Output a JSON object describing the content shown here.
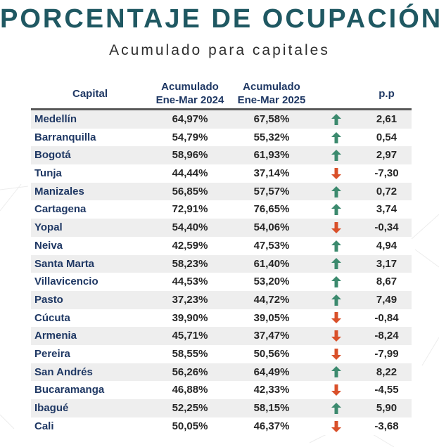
{
  "title": "PORCENTAJE DE OCUPACIÓN",
  "subtitle": "Acumulado para capitales",
  "colors": {
    "title": "#1f5862",
    "city": "#1f3864",
    "up": "#3c8a6e",
    "down": "#d9502a"
  },
  "header": {
    "capital": "Capital",
    "col2_line1": "Acumulado",
    "col2_line2": "Ene-Mar 2024",
    "col3_line1": "Acumulado",
    "col3_line2": "Ene-Mar 2025",
    "pp": "p.p"
  },
  "rows": [
    {
      "city": "Medellín",
      "y2024": "64,97%",
      "y2025": "67,58%",
      "trend": "up",
      "pp": "2,61"
    },
    {
      "city": "Barranquilla",
      "y2024": "54,79%",
      "y2025": "55,32%",
      "trend": "up",
      "pp": "0,54"
    },
    {
      "city": "Bogotá",
      "y2024": "58,96%",
      "y2025": "61,93%",
      "trend": "up",
      "pp": "2,97"
    },
    {
      "city": "Tunja",
      "y2024": "44,44%",
      "y2025": "37,14%",
      "trend": "down",
      "pp": "-7,30"
    },
    {
      "city": "Manizales",
      "y2024": "56,85%",
      "y2025": "57,57%",
      "trend": "up",
      "pp": "0,72"
    },
    {
      "city": "Cartagena",
      "y2024": "72,91%",
      "y2025": "76,65%",
      "trend": "up",
      "pp": "3,74"
    },
    {
      "city": "Yopal",
      "y2024": "54,40%",
      "y2025": "54,06%",
      "trend": "down",
      "pp": "-0,34"
    },
    {
      "city": "Neiva",
      "y2024": "42,59%",
      "y2025": "47,53%",
      "trend": "up",
      "pp": "4,94"
    },
    {
      "city": "Santa Marta",
      "y2024": "58,23%",
      "y2025": "61,40%",
      "trend": "up",
      "pp": "3,17"
    },
    {
      "city": "Villavicencio",
      "y2024": "44,53%",
      "y2025": "53,20%",
      "trend": "up",
      "pp": "8,67"
    },
    {
      "city": "Pasto",
      "y2024": "37,23%",
      "y2025": "44,72%",
      "trend": "up",
      "pp": "7,49"
    },
    {
      "city": "Cúcuta",
      "y2024": "39,90%",
      "y2025": "39,05%",
      "trend": "down",
      "pp": "-0,84"
    },
    {
      "city": "Armenia",
      "y2024": "45,71%",
      "y2025": "37,47%",
      "trend": "down",
      "pp": "-8,24"
    },
    {
      "city": "Pereira",
      "y2024": "58,55%",
      "y2025": "50,56%",
      "trend": "down",
      "pp": "-7,99"
    },
    {
      "city": "San Andrés",
      "y2024": "56,26%",
      "y2025": "64,49%",
      "trend": "up",
      "pp": "8,22"
    },
    {
      "city": "Bucaramanga",
      "y2024": "46,88%",
      "y2025": "42,33%",
      "trend": "down",
      "pp": "-4,55"
    },
    {
      "city": "Ibagué",
      "y2024": "52,25%",
      "y2025": "58,15%",
      "trend": "up",
      "pp": "5,90"
    },
    {
      "city": "Cali",
      "y2024": "50,05%",
      "y2025": "46,37%",
      "trend": "down",
      "pp": "-3,68"
    }
  ]
}
